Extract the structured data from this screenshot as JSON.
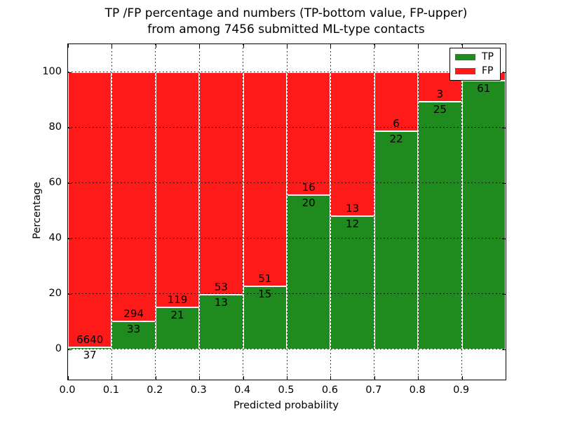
{
  "chart_data": {
    "type": "bar",
    "subtype": "stacked-percentage-histogram",
    "title_lines": [
      "TP /FP percentage and numbers (TP-bottom value, FP-upper)",
      "from among 7456 submitted ML-type contacts"
    ],
    "xlabel": "Predicted probability",
    "ylabel": "Percentage",
    "x_ticks": [
      "0.0",
      "0.1",
      "0.2",
      "0.3",
      "0.4",
      "0.5",
      "0.6",
      "0.7",
      "0.8",
      "0.9"
    ],
    "x_tick_values": [
      0.0,
      0.1,
      0.2,
      0.3,
      0.4,
      0.5,
      0.6,
      0.7,
      0.8,
      0.9
    ],
    "y_ticks": [
      "0",
      "20",
      "40",
      "60",
      "80",
      "100"
    ],
    "y_tick_values": [
      0,
      20,
      40,
      60,
      80,
      100
    ],
    "xlim": [
      0.0,
      1.0
    ],
    "ylim": [
      -11,
      110
    ],
    "grid": true,
    "colors": {
      "tp": "#1f8b1f",
      "fp": "#ff1a1a"
    },
    "legend": {
      "position": "upper-right",
      "entries": [
        {
          "label": "TP",
          "color": "#1f8b1f"
        },
        {
          "label": "FP",
          "color": "#ff1a1a"
        }
      ]
    },
    "bins": [
      {
        "x0": 0.0,
        "x1": 0.1,
        "tp_count": "37",
        "fp_count": "6640",
        "tp_pct": 0.55
      },
      {
        "x0": 0.1,
        "x1": 0.2,
        "tp_count": "33",
        "fp_count": "294",
        "tp_pct": 10.09
      },
      {
        "x0": 0.2,
        "x1": 0.3,
        "tp_count": "21",
        "fp_count": "119",
        "tp_pct": 15.0
      },
      {
        "x0": 0.3,
        "x1": 0.4,
        "tp_count": "13",
        "fp_count": "53",
        "tp_pct": 19.7
      },
      {
        "x0": 0.4,
        "x1": 0.5,
        "tp_count": "15",
        "fp_count": "51",
        "tp_pct": 22.73
      },
      {
        "x0": 0.5,
        "x1": 0.6,
        "tp_count": "20",
        "fp_count": "16",
        "tp_pct": 55.56
      },
      {
        "x0": 0.6,
        "x1": 0.7,
        "tp_count": "12",
        "fp_count": "13",
        "tp_pct": 48.0
      },
      {
        "x0": 0.7,
        "x1": 0.8,
        "tp_count": "22",
        "fp_count": "6",
        "tp_pct": 78.57
      },
      {
        "x0": 0.8,
        "x1": 0.9,
        "tp_count": "25",
        "fp_count": "3",
        "tp_pct": 89.29
      },
      {
        "x0": 0.9,
        "x1": 1.0,
        "tp_count": "61",
        "fp_count": "",
        "tp_pct": 96.83
      }
    ],
    "stack_total_pct": 100
  }
}
